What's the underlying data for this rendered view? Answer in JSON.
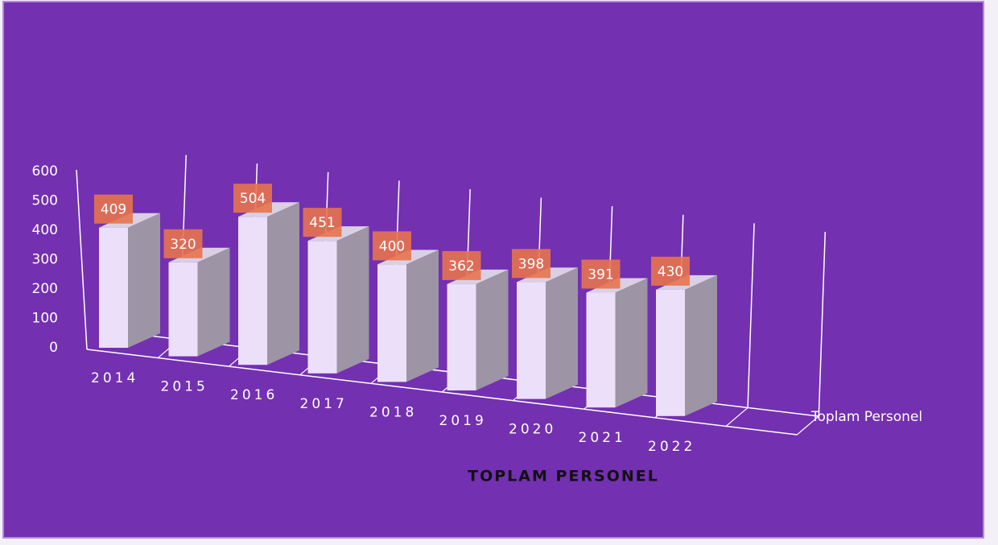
{
  "chart_data": {
    "type": "bar3d",
    "title": "TOPLAM PERSONEL",
    "categories": [
      "2014",
      "2015",
      "2016",
      "2017",
      "2018",
      "2019",
      "2020",
      "2021",
      "2022"
    ],
    "series": [
      {
        "name": "Toplam Personel",
        "color": "#ebdff9",
        "values": [
          409,
          320,
          504,
          451,
          400,
          362,
          398,
          391,
          430
        ]
      }
    ],
    "ylim": [
      0,
      600
    ],
    "yticks": [
      0,
      100,
      200,
      300,
      400,
      500,
      600
    ]
  }
}
